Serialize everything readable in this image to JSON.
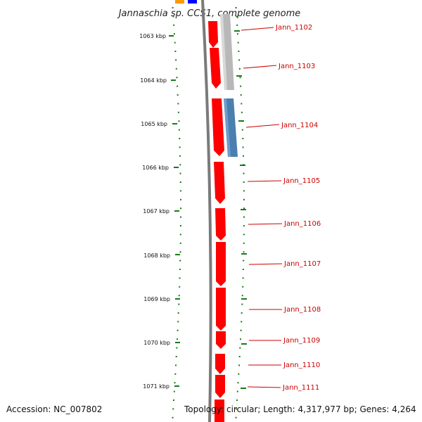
{
  "title": "Jannaschia sp. CCS1, complete genome",
  "footer": {
    "accession": "Accession: NC_007802",
    "topology": "Topology: circular; Length: 4,317,977 bp; Genes: 4,264"
  },
  "colors": {
    "forward_gene": "#ff0000",
    "gray_gene": "#b8b8b8",
    "blue_gene": "#4a7fb0",
    "orange_gene": "#ff9900",
    "dark_blue_gene": "#0000ff",
    "backbone": "#808080",
    "tick": "#1a7a1a",
    "label": "#cc0000"
  },
  "ruler": {
    "unit": "kbp",
    "ticks": [
      {
        "kbp": 1063,
        "label": "1063 kbp"
      },
      {
        "kbp": 1064,
        "label": "1064 kbp"
      },
      {
        "kbp": 1065,
        "label": "1065 kbp"
      },
      {
        "kbp": 1066,
        "label": "1066 kbp"
      },
      {
        "kbp": 1067,
        "label": "1067 kbp"
      },
      {
        "kbp": 1068,
        "label": "1068 kbp"
      },
      {
        "kbp": 1069,
        "label": "1069 kbp"
      },
      {
        "kbp": 1070,
        "label": "1070 kbp"
      },
      {
        "kbp": 1071,
        "label": "1071 kbp"
      }
    ]
  },
  "genes": [
    {
      "label": "Jann_1102"
    },
    {
      "label": "Jann_1103"
    },
    {
      "label": "Jann_1104"
    },
    {
      "label": "Jann_1105"
    },
    {
      "label": "Jann_1106"
    },
    {
      "label": "Jann_1107"
    },
    {
      "label": "Jann_1108"
    },
    {
      "label": "Jann_1109"
    },
    {
      "label": "Jann_1110"
    },
    {
      "label": "Jann_1111"
    }
  ]
}
